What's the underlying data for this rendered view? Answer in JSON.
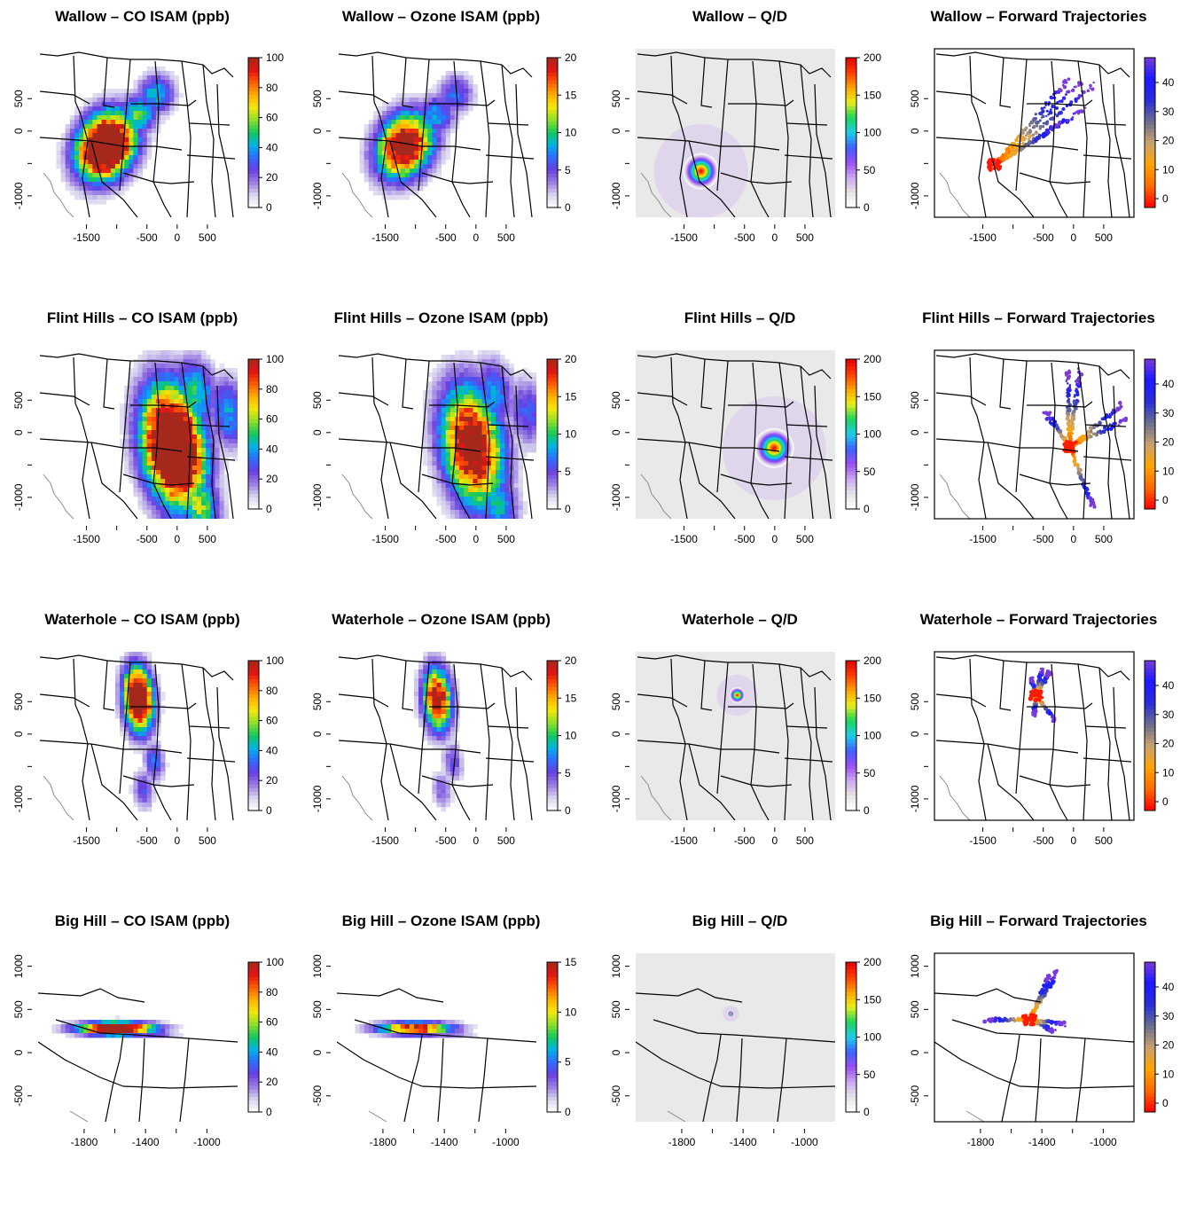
{
  "figure": {
    "colors": {
      "isam_scale": [
        "#ffffff",
        "#d9d4ee",
        "#9b7fe3",
        "#6a3fe0",
        "#2f6bff",
        "#00b4e6",
        "#14c85a",
        "#8de02a",
        "#f5e60c",
        "#ffb000",
        "#ff5a00",
        "#e31212",
        "#a5281c"
      ],
      "qd_scale": [
        "#ffffff",
        "#e6e6e6",
        "#c9a6ef",
        "#9a4df0",
        "#3f62ff",
        "#1bd0e8",
        "#1ed35a",
        "#e9ef16",
        "#ffa200",
        "#ff3c00",
        "#e00000"
      ],
      "traj_scale": [
        "#ff0000",
        "#ff6a00",
        "#ffa500",
        "#c9a26f",
        "#6b6f8e",
        "#2a2ed8",
        "#1a1aff",
        "#7a3ad8"
      ],
      "map_lines": "#000000",
      "coast_lines": "#8a8a8a"
    },
    "rows": [
      {
        "source": "Wallow",
        "domain": "conus",
        "xticks": [
          "-1500",
          "-500",
          "0",
          "500"
        ],
        "yticks": [
          "500",
          "0",
          "-1000"
        ],
        "plume": {
          "cx": -1180,
          "cy": -230,
          "sx": 290,
          "sy": 360,
          "angle": -35,
          "peak": 1.0,
          "ext": [
            [
              -350,
              560,
              0.45
            ],
            [
              -650,
              250,
              0.55
            ]
          ]
        },
        "qd_center": [
          -1220,
          -620
        ],
        "qd_radius": 300,
        "traj": {
          "start": [
            -1300,
            -520
          ],
          "ends": [
            [
              120,
              760
            ],
            [
              350,
              720
            ],
            [
              -80,
              800
            ],
            [
              200,
              350
            ],
            [
              -200,
              120
            ]
          ],
          "spread": 110
        },
        "panels": [
          {
            "title": "Wallow – CO ISAM (ppb)",
            "kind": "isam",
            "colorbar": {
              "labels": [
                "100",
                "80",
                "60",
                "40",
                "20",
                "0"
              ]
            }
          },
          {
            "title": "Wallow – Ozone ISAM (ppb)",
            "kind": "isam-o3",
            "colorbar": {
              "labels": [
                "20",
                "15",
                "10",
                "5",
                "0"
              ]
            }
          },
          {
            "title": "Wallow – Q/D",
            "kind": "qd",
            "colorbar": {
              "labels": [
                "200",
                "150",
                "100",
                "50",
                "0"
              ]
            }
          },
          {
            "title": "Wallow – Forward Trajectories",
            "kind": "traj",
            "colorbar": {
              "labels": [
                "40",
                "30",
                "20",
                "10",
                "0"
              ]
            }
          }
        ]
      },
      {
        "source": "Flint Hills",
        "domain": "conus",
        "xticks": [
          "-1500",
          "-500",
          "0",
          "500"
        ],
        "yticks": [
          "500",
          "0",
          "-1000"
        ],
        "plume": {
          "cx": -60,
          "cy": -220,
          "sx": 330,
          "sy": 620,
          "angle": 10,
          "peak": 1.0,
          "ext": [
            [
              300,
              600,
              0.5
            ],
            [
              850,
              300,
              0.4
            ],
            [
              350,
              -1100,
              0.6
            ]
          ]
        },
        "qd_center": [
          -10,
          -240
        ],
        "qd_radius": 330,
        "traj": {
          "start": [
            -60,
            -220
          ],
          "ends": [
            [
              800,
              420
            ],
            [
              850,
              200
            ],
            [
              -100,
              950
            ],
            [
              100,
              950
            ],
            [
              320,
              -1150
            ],
            [
              -450,
              300
            ]
          ],
          "spread": 120
        },
        "panels": [
          {
            "title": "Flint Hills – CO ISAM (ppb)",
            "kind": "isam",
            "colorbar": {
              "labels": [
                "100",
                "80",
                "60",
                "40",
                "20",
                "0"
              ]
            }
          },
          {
            "title": "Flint Hills – Ozone ISAM (ppb)",
            "kind": "isam-o3",
            "colorbar": {
              "labels": [
                "20",
                "15",
                "10",
                "5",
                "0"
              ]
            }
          },
          {
            "title": "Flint Hills – Q/D",
            "kind": "qd",
            "colorbar": {
              "labels": [
                "200",
                "150",
                "100",
                "50",
                "0"
              ]
            }
          },
          {
            "title": "Flint Hills – Forward Trajectories",
            "kind": "traj",
            "colorbar": {
              "labels": [
                "40",
                "30",
                "20",
                "10",
                "0"
              ]
            }
          }
        ]
      },
      {
        "source": "Waterhole",
        "domain": "conus",
        "xticks": [
          "-1500",
          "-500",
          "0",
          "500"
        ],
        "yticks": [
          "500",
          "0",
          "-1000"
        ],
        "plume": {
          "cx": -640,
          "cy": 540,
          "sx": 160,
          "sy": 330,
          "angle": 5,
          "peak": 0.9,
          "ext": [
            [
              -380,
              -430,
              0.35
            ],
            [
              -560,
              -860,
              0.3
            ]
          ]
        },
        "qd_center": [
          -620,
          600
        ],
        "qd_radius": 130,
        "traj": {
          "start": [
            -620,
            600
          ],
          "ends": [
            [
              -520,
              1000
            ],
            [
              -400,
              950
            ],
            [
              -300,
              200
            ],
            [
              -650,
              300
            ],
            [
              -700,
              850
            ]
          ],
          "spread": 80
        },
        "panels": [
          {
            "title": "Waterhole – CO ISAM (ppb)",
            "kind": "isam",
            "colorbar": {
              "labels": [
                "100",
                "80",
                "60",
                "40",
                "20",
                "0"
              ]
            }
          },
          {
            "title": "Waterhole – Ozone ISAM (ppb)",
            "kind": "isam-o3",
            "colorbar": {
              "labels": [
                "20",
                "15",
                "10",
                "5",
                "0"
              ]
            }
          },
          {
            "title": "Waterhole – Q/D",
            "kind": "qd",
            "colorbar": {
              "labels": [
                "200",
                "150",
                "100",
                "50",
                "0"
              ]
            }
          },
          {
            "title": "Waterhole – Forward Trajectories",
            "kind": "traj",
            "colorbar": {
              "labels": [
                "40",
                "30",
                "20",
                "10",
                "0"
              ]
            }
          }
        ]
      },
      {
        "source": "Big Hill",
        "domain": "west",
        "xticks": [
          "-1800",
          "-1400",
          "-1000"
        ],
        "yticks": [
          "1000",
          "500",
          "0",
          "-500"
        ],
        "plume": {
          "cx": -1590,
          "cy": 280,
          "sx": 170,
          "sy": 50,
          "angle": 0,
          "peak": 0.85,
          "ext": [
            [
              -1360,
              220,
              0.3
            ]
          ]
        },
        "qd_center": [
          -1480,
          450
        ],
        "qd_radius": 20,
        "traj": {
          "start": [
            -1480,
            380
          ],
          "ends": [
            [
              -1300,
              950
            ],
            [
              -1350,
              900
            ],
            [
              -1760,
              380
            ],
            [
              -1320,
              250
            ],
            [
              -1260,
              330
            ]
          ],
          "spread": 40
        },
        "panels": [
          {
            "title": "Big Hill – CO ISAM (ppb)",
            "kind": "isam",
            "colorbar": {
              "labels": [
                "100",
                "80",
                "60",
                "40",
                "20",
                "0"
              ]
            }
          },
          {
            "title": "Big Hill – Ozone ISAM (ppb)",
            "kind": "isam-o3",
            "colorbar": {
              "labels": [
                "15",
                "10",
                "5",
                "0"
              ]
            }
          },
          {
            "title": "Big Hill – Q/D",
            "kind": "qd",
            "colorbar": {
              "labels": [
                "200",
                "150",
                "100",
                "50",
                "0"
              ]
            }
          },
          {
            "title": "Big Hill – Forward Trajectories",
            "kind": "traj",
            "colorbar": {
              "labels": [
                "40",
                "30",
                "20",
                "10",
                "0"
              ]
            }
          }
        ]
      }
    ]
  },
  "chart_data": [
    {
      "type": "heatmap",
      "title": "Wallow – CO ISAM (ppb)",
      "colorbar_range": [
        0,
        100
      ],
      "colorbar_ticks": [
        0,
        20,
        40,
        60,
        80,
        100
      ],
      "x_ticks": [
        -1500,
        -500,
        0,
        500
      ],
      "y_ticks": [
        -1000,
        0,
        500
      ]
    },
    {
      "type": "heatmap",
      "title": "Wallow – Ozone ISAM (ppb)",
      "colorbar_range": [
        0,
        20
      ],
      "colorbar_ticks": [
        0,
        5,
        10,
        15,
        20
      ],
      "x_ticks": [
        -1500,
        -500,
        0,
        500
      ],
      "y_ticks": [
        -1000,
        0,
        500
      ]
    },
    {
      "type": "heatmap",
      "title": "Wallow – Q/D",
      "colorbar_range": [
        0,
        200
      ],
      "colorbar_ticks": [
        0,
        50,
        100,
        150,
        200
      ],
      "x_ticks": [
        -1500,
        -500,
        0,
        500
      ],
      "y_ticks": [
        -1000,
        0,
        500
      ]
    },
    {
      "type": "scatter",
      "title": "Wallow – Forward Trajectories",
      "colorbar_range": [
        0,
        48
      ],
      "colorbar_ticks": [
        0,
        10,
        20,
        30,
        40
      ],
      "x_ticks": [
        -1500,
        -500,
        0,
        500
      ],
      "y_ticks": [
        -1000,
        0,
        500
      ]
    },
    {
      "type": "heatmap",
      "title": "Flint Hills – CO ISAM (ppb)",
      "colorbar_range": [
        0,
        100
      ],
      "colorbar_ticks": [
        0,
        20,
        40,
        60,
        80,
        100
      ],
      "x_ticks": [
        -1500,
        -500,
        0,
        500
      ],
      "y_ticks": [
        -1000,
        0,
        500
      ]
    },
    {
      "type": "heatmap",
      "title": "Flint Hills – Ozone ISAM (ppb)",
      "colorbar_range": [
        0,
        20
      ],
      "colorbar_ticks": [
        0,
        5,
        10,
        15,
        20
      ],
      "x_ticks": [
        -1500,
        -500,
        0,
        500
      ],
      "y_ticks": [
        -1000,
        0,
        500
      ]
    },
    {
      "type": "heatmap",
      "title": "Flint Hills – Q/D",
      "colorbar_range": [
        0,
        200
      ],
      "colorbar_ticks": [
        0,
        50,
        100,
        150,
        200
      ],
      "x_ticks": [
        -1500,
        -500,
        0,
        500
      ],
      "y_ticks": [
        -1000,
        0,
        500
      ]
    },
    {
      "type": "scatter",
      "title": "Flint Hills – Forward Trajectories",
      "colorbar_range": [
        0,
        48
      ],
      "colorbar_ticks": [
        0,
        10,
        20,
        30,
        40
      ],
      "x_ticks": [
        -1500,
        -500,
        0,
        500
      ],
      "y_ticks": [
        -1000,
        0,
        500
      ]
    },
    {
      "type": "heatmap",
      "title": "Waterhole – CO ISAM (ppb)",
      "colorbar_range": [
        0,
        100
      ],
      "colorbar_ticks": [
        0,
        20,
        40,
        60,
        80,
        100
      ],
      "x_ticks": [
        -1500,
        -500,
        0,
        500
      ],
      "y_ticks": [
        -1000,
        0,
        500
      ]
    },
    {
      "type": "heatmap",
      "title": "Waterhole – Ozone ISAM (ppb)",
      "colorbar_range": [
        0,
        20
      ],
      "colorbar_ticks": [
        0,
        5,
        10,
        15,
        20
      ],
      "x_ticks": [
        -1500,
        -500,
        0,
        500
      ],
      "y_ticks": [
        -1000,
        0,
        500
      ]
    },
    {
      "type": "heatmap",
      "title": "Waterhole – Q/D",
      "colorbar_range": [
        0,
        200
      ],
      "colorbar_ticks": [
        0,
        50,
        100,
        150,
        200
      ],
      "x_ticks": [
        -1500,
        -500,
        0,
        500
      ],
      "y_ticks": [
        -1000,
        0,
        500
      ]
    },
    {
      "type": "scatter",
      "title": "Waterhole – Forward Trajectories",
      "colorbar_range": [
        0,
        48
      ],
      "colorbar_ticks": [
        0,
        10,
        20,
        30,
        40
      ],
      "x_ticks": [
        -1500,
        -500,
        0,
        500
      ],
      "y_ticks": [
        -1000,
        0,
        500
      ]
    },
    {
      "type": "heatmap",
      "title": "Big Hill – CO ISAM (ppb)",
      "colorbar_range": [
        0,
        100
      ],
      "colorbar_ticks": [
        0,
        20,
        40,
        60,
        80,
        100
      ],
      "x_ticks": [
        -1800,
        -1400,
        -1000
      ],
      "y_ticks": [
        -500,
        0,
        500,
        1000
      ]
    },
    {
      "type": "heatmap",
      "title": "Big Hill – Ozone ISAM (ppb)",
      "colorbar_range": [
        0,
        18
      ],
      "colorbar_ticks": [
        0,
        5,
        10,
        15
      ],
      "x_ticks": [
        -1800,
        -1400,
        -1000
      ],
      "y_ticks": [
        -500,
        0,
        500,
        1000
      ]
    },
    {
      "type": "heatmap",
      "title": "Big Hill – Q/D",
      "colorbar_range": [
        0,
        200
      ],
      "colorbar_ticks": [
        0,
        50,
        100,
        150,
        200
      ],
      "x_ticks": [
        -1800,
        -1400,
        -1000
      ],
      "y_ticks": [
        -500,
        0,
        500,
        1000
      ]
    },
    {
      "type": "scatter",
      "title": "Big Hill – Forward Trajectories",
      "colorbar_range": [
        0,
        48
      ],
      "colorbar_ticks": [
        0,
        10,
        20,
        30,
        40
      ],
      "x_ticks": [
        -1800,
        -1400,
        -1000
      ],
      "y_ticks": [
        -500,
        0,
        500,
        1000
      ]
    }
  ]
}
